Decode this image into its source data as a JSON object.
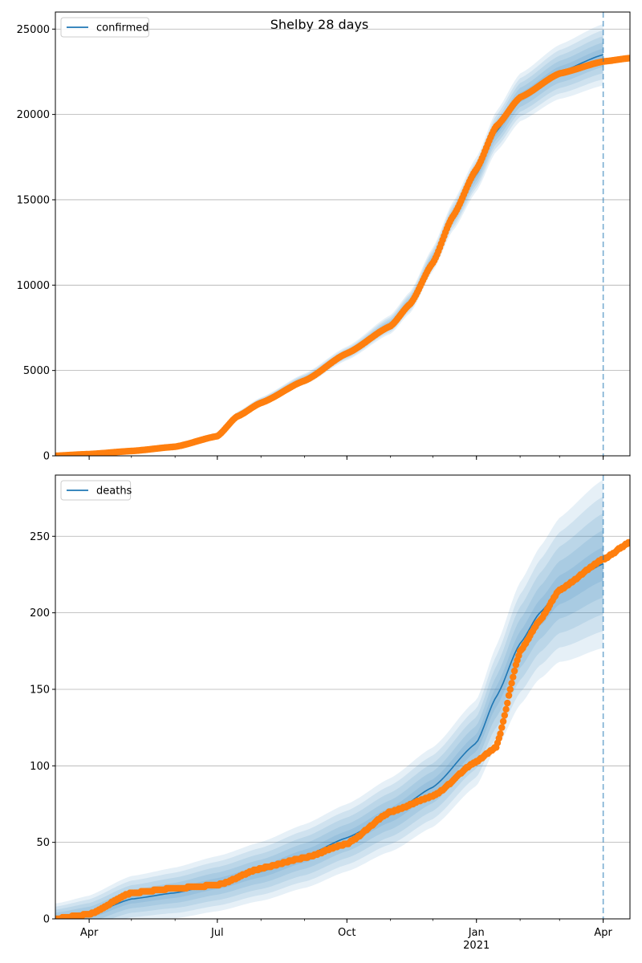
{
  "figure_title": "Shelby 28 days",
  "colors": {
    "model_line": "#1f77b4",
    "observed_points": "#ff7f0e",
    "band": "#1f77b4",
    "vline": "#1f77b4",
    "grid": "#b0b0b0"
  },
  "chart_data": [
    {
      "type": "line",
      "panel": "top",
      "legend": {
        "label": "confirmed",
        "placement": "top-left"
      },
      "x_axis": {
        "type": "date",
        "range": [
          "2020-03-08",
          "2021-04-20"
        ],
        "ticks": [
          {
            "date": "2020-04-01",
            "label": "Apr"
          },
          {
            "date": "2020-07-01",
            "label": "Jul"
          },
          {
            "date": "2020-10-01",
            "label": "Oct"
          },
          {
            "date": "2021-01-01",
            "label": "Jan",
            "sublabel": "2021"
          },
          {
            "date": "2021-04-01",
            "label": "Apr"
          }
        ]
      },
      "y_axis": {
        "range": [
          0,
          26000
        ],
        "ticks": [
          0,
          5000,
          10000,
          15000,
          20000,
          25000
        ]
      },
      "grid": "horizontal",
      "vline_date": "2021-04-01",
      "model_knots": [
        [
          "2020-03-08",
          0
        ],
        [
          "2020-04-01",
          100
        ],
        [
          "2020-05-01",
          300
        ],
        [
          "2020-06-01",
          550
        ],
        [
          "2020-07-01",
          1200
        ],
        [
          "2020-07-15",
          2400
        ],
        [
          "2020-08-01",
          3200
        ],
        [
          "2020-09-01",
          4500
        ],
        [
          "2020-10-01",
          6000
        ],
        [
          "2020-11-01",
          7700
        ],
        [
          "2020-11-15",
          9000
        ],
        [
          "2020-12-01",
          11500
        ],
        [
          "2020-12-15",
          14000
        ],
        [
          "2021-01-01",
          16500
        ],
        [
          "2021-01-15",
          19000
        ],
        [
          "2021-02-01",
          21000
        ],
        [
          "2021-03-01",
          22500
        ],
        [
          "2021-04-01",
          23500
        ]
      ],
      "band_widths": [
        [
          "2020-03-08",
          30
        ],
        [
          "2020-07-01",
          150
        ],
        [
          "2020-10-01",
          400
        ],
        [
          "2020-12-01",
          700
        ],
        [
          "2021-01-01",
          1000
        ],
        [
          "2021-02-01",
          1400
        ],
        [
          "2021-04-01",
          1800
        ]
      ],
      "observed_knots": [
        [
          "2020-03-08",
          0
        ],
        [
          "2020-04-01",
          100
        ],
        [
          "2020-05-01",
          280
        ],
        [
          "2020-06-01",
          530
        ],
        [
          "2020-07-01",
          1150
        ],
        [
          "2020-07-15",
          2300
        ],
        [
          "2020-08-01",
          3100
        ],
        [
          "2020-09-01",
          4400
        ],
        [
          "2020-10-01",
          6000
        ],
        [
          "2020-11-01",
          7600
        ],
        [
          "2020-11-15",
          8900
        ],
        [
          "2020-12-01",
          11300
        ],
        [
          "2020-12-15",
          14000
        ],
        [
          "2021-01-01",
          16800
        ],
        [
          "2021-01-15",
          19300
        ],
        [
          "2021-02-01",
          21000
        ],
        [
          "2021-03-01",
          22400
        ],
        [
          "2021-04-01",
          23100
        ],
        [
          "2021-04-20",
          23300
        ]
      ]
    },
    {
      "type": "line",
      "panel": "bottom",
      "legend": {
        "label": "deaths",
        "placement": "top-left"
      },
      "x_axis": {
        "type": "date",
        "range": [
          "2020-03-08",
          "2021-04-20"
        ],
        "ticks": [
          {
            "date": "2020-04-01",
            "label": "Apr"
          },
          {
            "date": "2020-07-01",
            "label": "Jul"
          },
          {
            "date": "2020-10-01",
            "label": "Oct"
          },
          {
            "date": "2021-01-01",
            "label": "Jan",
            "sublabel": "2021"
          },
          {
            "date": "2021-04-01",
            "label": "Apr"
          }
        ]
      },
      "y_axis": {
        "range": [
          0,
          290
        ],
        "ticks": [
          0,
          50,
          100,
          150,
          200,
          250
        ]
      },
      "grid": "horizontal",
      "vline_date": "2021-04-01",
      "model_knots": [
        [
          "2020-03-08",
          0
        ],
        [
          "2020-04-01",
          3
        ],
        [
          "2020-05-01",
          13
        ],
        [
          "2020-06-01",
          17
        ],
        [
          "2020-07-01",
          23
        ],
        [
          "2020-08-01",
          31
        ],
        [
          "2020-09-01",
          41
        ],
        [
          "2020-10-01",
          53
        ],
        [
          "2020-11-01",
          68
        ],
        [
          "2020-12-01",
          86
        ],
        [
          "2021-01-01",
          115
        ],
        [
          "2021-01-15",
          145
        ],
        [
          "2021-02-01",
          180
        ],
        [
          "2021-02-15",
          200
        ],
        [
          "2021-03-01",
          215
        ],
        [
          "2021-04-01",
          232
        ]
      ],
      "band_widths": [
        [
          "2020-03-08",
          10
        ],
        [
          "2020-05-01",
          15
        ],
        [
          "2020-07-01",
          18
        ],
        [
          "2020-10-01",
          22
        ],
        [
          "2020-12-01",
          26
        ],
        [
          "2021-01-01",
          28
        ],
        [
          "2021-02-01",
          40
        ],
        [
          "2021-04-01",
          55
        ]
      ],
      "observed_knots": [
        [
          "2020-03-08",
          0
        ],
        [
          "2020-04-01",
          3
        ],
        [
          "2020-05-01",
          17
        ],
        [
          "2020-06-01",
          20
        ],
        [
          "2020-07-01",
          22
        ],
        [
          "2020-08-01",
          33
        ],
        [
          "2020-09-01",
          40
        ],
        [
          "2020-10-01",
          49
        ],
        [
          "2020-11-01",
          70
        ],
        [
          "2020-12-01",
          80
        ],
        [
          "2021-01-01",
          103
        ],
        [
          "2021-01-15",
          112
        ],
        [
          "2021-02-01",
          175
        ],
        [
          "2021-02-15",
          195
        ],
        [
          "2021-03-01",
          215
        ],
        [
          "2021-04-01",
          235
        ],
        [
          "2021-04-20",
          246
        ]
      ]
    }
  ]
}
